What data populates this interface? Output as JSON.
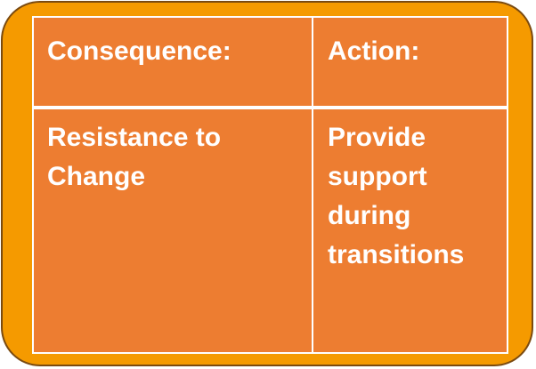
{
  "colors": {
    "outer_fill": "#f59a00",
    "outer_border": "#7a4a10",
    "table_fill": "#ed7d31",
    "text": "#ffffff",
    "grid_lines": "#ffffff"
  },
  "table": {
    "headers": {
      "consequence": "Consequence:",
      "action": "Action:"
    },
    "rows": [
      {
        "consequence": "Resistance to Change",
        "action": "Provide support during transitions"
      }
    ]
  }
}
